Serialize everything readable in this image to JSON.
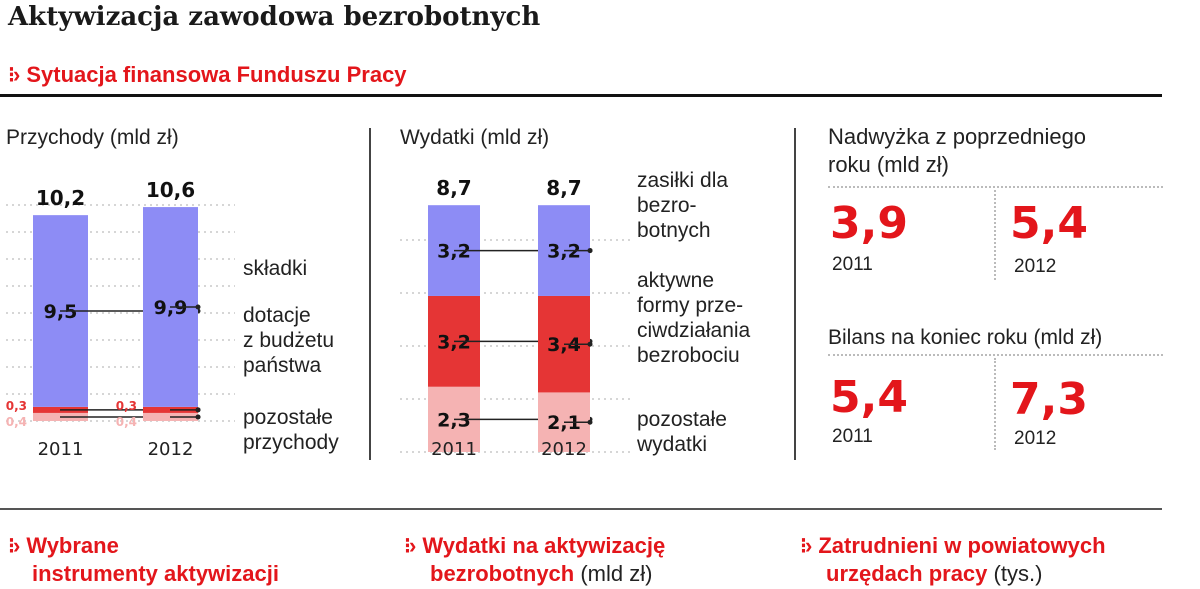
{
  "page_title": "Aktywizacja zawodowa bezrobotnych",
  "section_funduszu": "Sytuacja finansowa Funduszu Pracy",
  "colors": {
    "accent": "#e3161b",
    "blue": "#8d8cf5",
    "red": "#e53535",
    "pink": "#f5b3b3",
    "brand_red": "#e3161b"
  },
  "chart_data": [
    {
      "type": "bar",
      "stacked": true,
      "title": "Przychody (mld zł)",
      "categories": [
        "2011",
        "2012"
      ],
      "totals": [
        "10,2",
        "10,6"
      ],
      "series": [
        {
          "name": "pozostałe przychody",
          "values": [
            0.4,
            0.4
          ],
          "labels": [
            "0,4",
            "0,4"
          ],
          "color": "#f5b3b3"
        },
        {
          "name": "dotacje z budżetu państwa",
          "values": [
            0.3,
            0.3
          ],
          "labels": [
            "0,3",
            "0,3"
          ],
          "color": "#e53535"
        },
        {
          "name": "składki",
          "values": [
            9.5,
            9.9
          ],
          "labels": [
            "9,5",
            "9,9"
          ],
          "color": "#8d8cf5"
        }
      ],
      "legend_labels": [
        {
          "lines": [
            "składki"
          ]
        },
        {
          "lines": [
            "dotacje",
            "z budżetu",
            "państwa"
          ]
        },
        {
          "lines": [
            "pozostałe",
            "przychody"
          ]
        }
      ],
      "ylim": [
        0,
        11
      ],
      "grid": true
    },
    {
      "type": "bar",
      "stacked": true,
      "title": "Wydatki (mld zł)",
      "categories": [
        "2011",
        "2012"
      ],
      "totals": [
        "8,7",
        "8,7"
      ],
      "series": [
        {
          "name": "pozostałe wydatki",
          "values": [
            2.3,
            2.1
          ],
          "labels": [
            "2,3",
            "2,1"
          ],
          "color": "#f5b3b3"
        },
        {
          "name": "aktywne formy przeciwdziałania bezrobociu",
          "values": [
            3.2,
            3.4
          ],
          "labels": [
            "3,2",
            "3,4"
          ],
          "color": "#e53535"
        },
        {
          "name": "zasiłki dla bezrobotnych",
          "values": [
            3.2,
            3.2
          ],
          "labels": [
            "3,2",
            "3,2"
          ],
          "color": "#8d8cf5"
        }
      ],
      "legend_labels": [
        {
          "lines": [
            "zasiłki dla",
            "bezro-",
            "botnych"
          ]
        },
        {
          "lines": [
            "aktywne",
            "formy prze-",
            "ciwdziałania",
            "bezrobociu"
          ]
        },
        {
          "lines": [
            "pozostałe",
            "wydatki"
          ]
        }
      ],
      "ylim": [
        0,
        9.2
      ],
      "grid": true
    }
  ],
  "nadwyzka": {
    "title_lines": [
      "Nadwyżka z poprzedniego",
      "roku (mld zł)"
    ],
    "items": [
      {
        "value": "3,9",
        "year": "2011"
      },
      {
        "value": "5,4",
        "year": "2012"
      }
    ]
  },
  "bilans": {
    "title": "Bilans na koniec roku (mld zł)",
    "items": [
      {
        "value": "5,4",
        "year": "2011"
      },
      {
        "value": "7,3",
        "year": "2012"
      }
    ]
  },
  "bottom_sections": [
    {
      "title_lines": [
        "Wybrane",
        "instrumenty aktywizacji"
      ],
      "suffix": ""
    },
    {
      "title_lines": [
        "Wydatki na aktywizację",
        "bezrobotnych"
      ],
      "suffix": " (mld zł)"
    },
    {
      "title_lines": [
        "Zatrudnieni w powiatowych",
        "urzędach pracy"
      ],
      "suffix": " (tys.)"
    }
  ]
}
